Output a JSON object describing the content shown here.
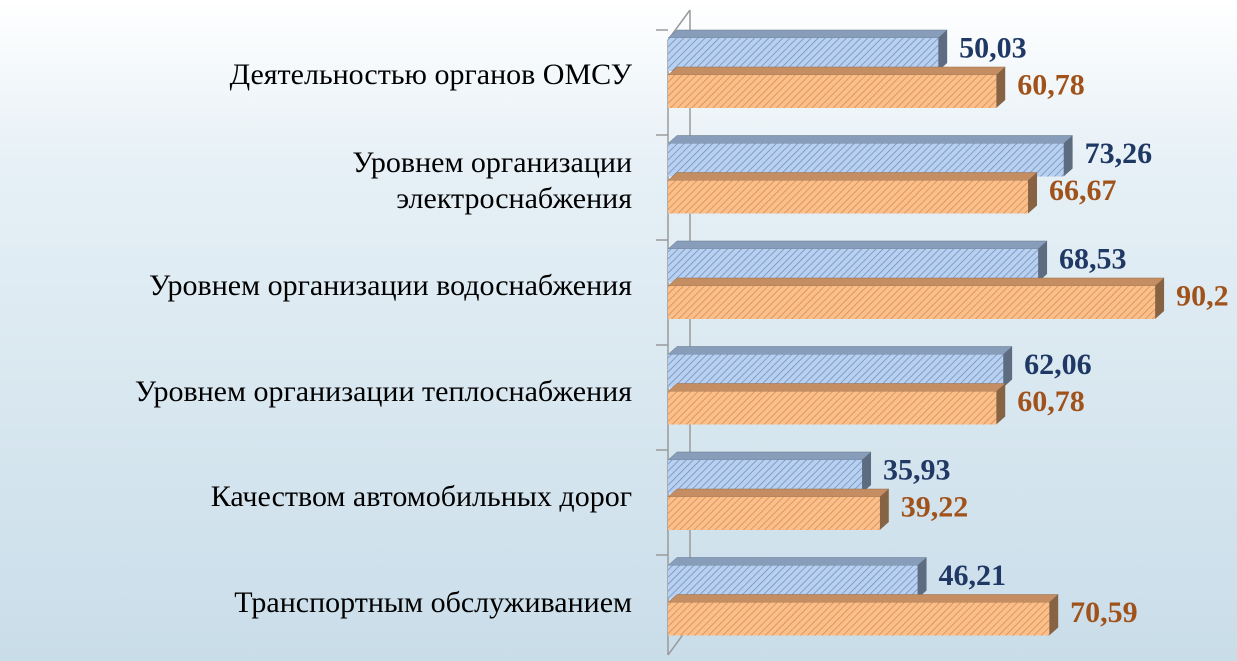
{
  "chart_data": {
    "type": "bar",
    "orientation": "horizontal",
    "categories": [
      "Деятельностью органов ОМСУ",
      "Уровнем организации\nэлектроснабжения",
      "Уровнем организации водоснабжения",
      "Уровнем организации теплоснабжения",
      "Качеством автомобильных дорог",
      "Транспортным обслуживанием"
    ],
    "series": [
      {
        "color": "#a9c4e8",
        "values": [
          50.03,
          73.26,
          68.53,
          62.06,
          35.93,
          46.21
        ],
        "value_labels": [
          "50,03",
          "73,26",
          "68,53",
          "62,06",
          "35,93",
          "46,21"
        ],
        "label_color": "#1f3864"
      },
      {
        "color": "#f6b27a",
        "values": [
          60.78,
          66.67,
          90.2,
          60.78,
          39.22,
          70.59
        ],
        "value_labels": [
          "60,78",
          "66,67",
          "90,2",
          "60,78",
          "39,22",
          "70,59"
        ],
        "label_color": "#a0521a"
      }
    ],
    "xlim": [
      0,
      100
    ]
  }
}
